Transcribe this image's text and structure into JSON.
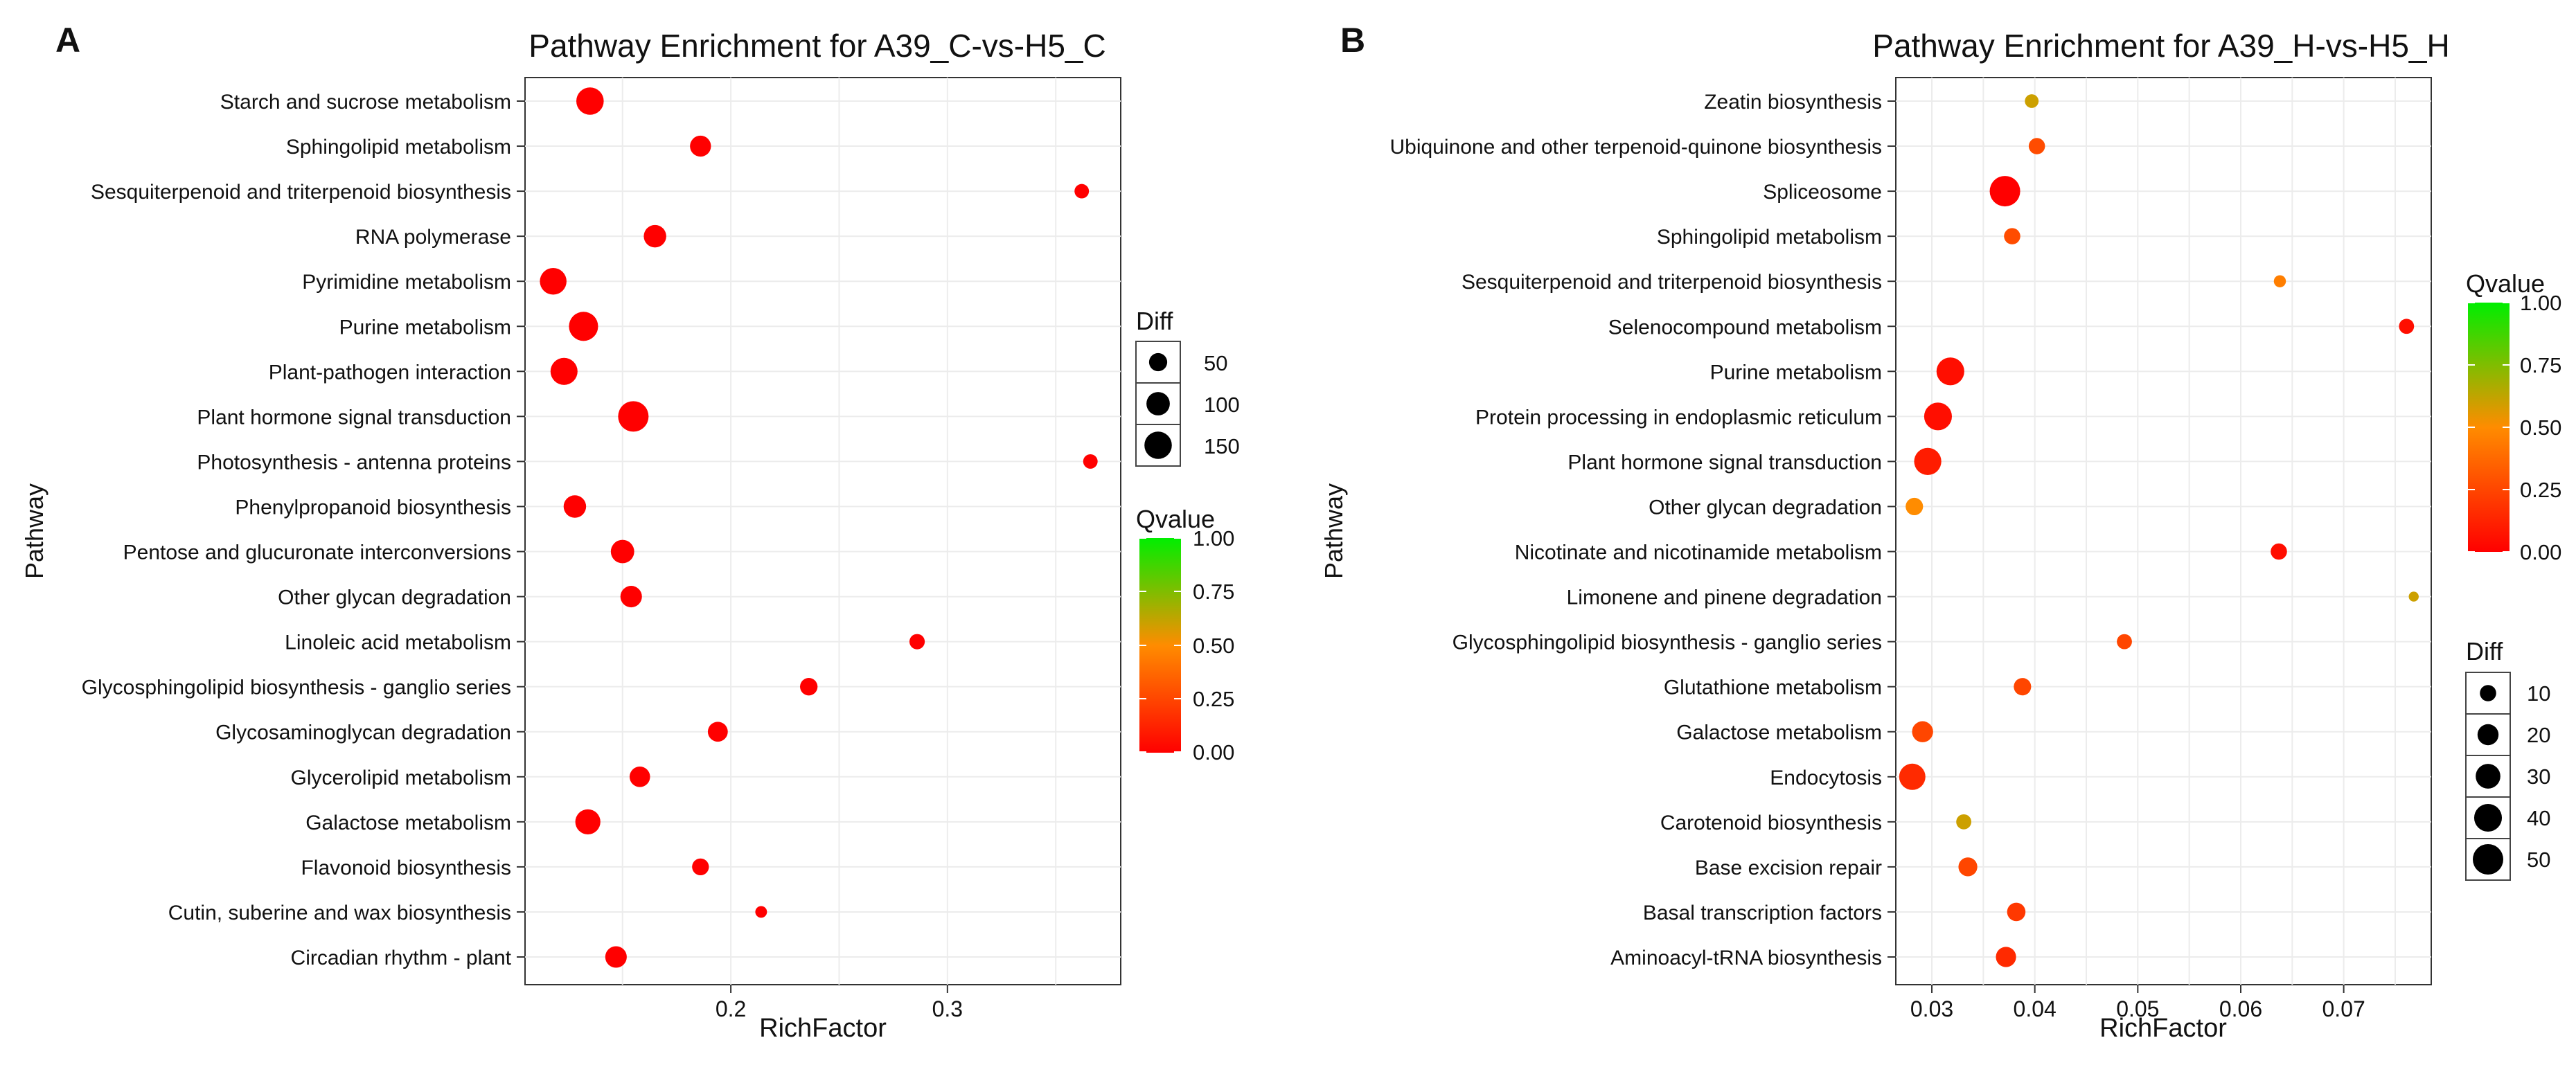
{
  "chart_data": [
    {
      "type": "scatter",
      "panel_label": "A",
      "title": "Pathway Enrichment for A39_C-vs-H5_C",
      "xlabel": "RichFactor",
      "ylabel": "Pathway",
      "xlim": [
        0.105,
        0.38
      ],
      "xticks": [
        0.2,
        0.3
      ],
      "xtick_labels": [
        "0.2",
        "0.3"
      ],
      "points": [
        {
          "pathway": "Starch and sucrose metabolism",
          "rich": 0.135,
          "diff": 150,
          "q": 0.0
        },
        {
          "pathway": "Sphingolipid metabolism",
          "rich": 0.186,
          "diff": 75,
          "q": 0.0
        },
        {
          "pathway": "Sesquiterpenoid and triterpenoid biosynthesis",
          "rich": 0.362,
          "diff": 25,
          "q": 0.0
        },
        {
          "pathway": "RNA polymerase",
          "rich": 0.165,
          "diff": 90,
          "q": 0.0
        },
        {
          "pathway": "Pyrimidine metabolism",
          "rich": 0.118,
          "diff": 140,
          "q": 0.0
        },
        {
          "pathway": "Purine metabolism",
          "rich": 0.132,
          "diff": 175,
          "q": 0.0
        },
        {
          "pathway": "Plant-pathogen interaction",
          "rich": 0.123,
          "diff": 145,
          "q": 0.0
        },
        {
          "pathway": "Plant hormone signal transduction",
          "rich": 0.155,
          "diff": 195,
          "q": 0.0
        },
        {
          "pathway": "Photosynthesis - antenna proteins",
          "rich": 0.366,
          "diff": 25,
          "q": 0.0
        },
        {
          "pathway": "Phenylpropanoid biosynthesis",
          "rich": 0.128,
          "diff": 90,
          "q": 0.0
        },
        {
          "pathway": "Pentose and glucuronate interconversions",
          "rich": 0.15,
          "diff": 100,
          "q": 0.0
        },
        {
          "pathway": "Other glycan degradation",
          "rich": 0.154,
          "diff": 80,
          "q": 0.0
        },
        {
          "pathway": "Linoleic acid metabolism",
          "rich": 0.286,
          "diff": 30,
          "q": 0.0
        },
        {
          "pathway": "Glycosphingolipid biosynthesis - ganglio series",
          "rich": 0.236,
          "diff": 45,
          "q": 0.0
        },
        {
          "pathway": "Glycosaminoglycan degradation",
          "rich": 0.194,
          "diff": 65,
          "q": 0.0
        },
        {
          "pathway": "Glycerolipid metabolism",
          "rich": 0.158,
          "diff": 70,
          "q": 0.0
        },
        {
          "pathway": "Galactose metabolism",
          "rich": 0.134,
          "diff": 120,
          "q": 0.0
        },
        {
          "pathway": "Flavonoid biosynthesis",
          "rich": 0.186,
          "diff": 40,
          "q": 0.0
        },
        {
          "pathway": "Cutin, suberine and wax biosynthesis",
          "rich": 0.214,
          "diff": 12,
          "q": 0.0
        },
        {
          "pathway": "Circadian rhythm - plant",
          "rich": 0.147,
          "diff": 80,
          "q": 0.0
        }
      ],
      "size_legend": {
        "title": "Diff",
        "values": [
          50,
          100,
          150
        ],
        "labels": [
          "50",
          "100",
          "150"
        ]
      },
      "color_legend": {
        "title": "Qvalue",
        "ticks": [
          1.0,
          0.75,
          0.5,
          0.25,
          0.0
        ],
        "labels": [
          "1.00",
          "0.75",
          "0.50",
          "0.25",
          "0.00"
        ],
        "low_color": "#ff0000",
        "mid_color": "#ff8c00",
        "high_color": "#00ee00"
      }
    },
    {
      "type": "scatter",
      "panel_label": "B",
      "title": "Pathway Enrichment for A39_H-vs-H5_H",
      "xlabel": "RichFactor",
      "ylabel": "Pathway",
      "xlim": [
        0.0265,
        0.0785
      ],
      "xticks": [
        0.03,
        0.04,
        0.05,
        0.06,
        0.07
      ],
      "xtick_labels": [
        "0.03",
        "0.04",
        "0.05",
        "0.06",
        "0.07"
      ],
      "points": [
        {
          "pathway": "Zeatin biosynthesis",
          "rich": 0.0397,
          "diff": 6,
          "q": 0.6
        },
        {
          "pathway": "Ubiquinone and other terpenoid-quinone biosynthesis",
          "rich": 0.0402,
          "diff": 10,
          "q": 0.27
        },
        {
          "pathway": "Spliceosome",
          "rich": 0.0371,
          "diff": 50,
          "q": 0.0
        },
        {
          "pathway": "Sphingolipid metabolism",
          "rich": 0.0378,
          "diff": 10,
          "q": 0.27
        },
        {
          "pathway": "Sesquiterpenoid and triterpenoid biosynthesis",
          "rich": 0.0638,
          "diff": 4,
          "q": 0.45
        },
        {
          "pathway": "Selenocompound metabolism",
          "rich": 0.0761,
          "diff": 8,
          "q": 0.05
        },
        {
          "pathway": "Purine metabolism",
          "rich": 0.0318,
          "diff": 40,
          "q": 0.05
        },
        {
          "pathway": "Protein processing in endoplasmic reticulum",
          "rich": 0.0306,
          "diff": 40,
          "q": 0.05
        },
        {
          "pathway": "Plant hormone signal transduction",
          "rich": 0.0296,
          "diff": 38,
          "q": 0.1
        },
        {
          "pathway": "Other glycan degradation",
          "rich": 0.0283,
          "diff": 12,
          "q": 0.5
        },
        {
          "pathway": "Nicotinate and nicotinamide metabolism",
          "rich": 0.0637,
          "diff": 10,
          "q": 0.05
        },
        {
          "pathway": "Limonene and pinene degradation",
          "rich": 0.0768,
          "diff": 2,
          "q": 0.6
        },
        {
          "pathway": "Glycosphingolipid biosynthesis - ganglio series",
          "rich": 0.0487,
          "diff": 8,
          "q": 0.25
        },
        {
          "pathway": "Glutathione metabolism",
          "rich": 0.0388,
          "diff": 12,
          "q": 0.25
        },
        {
          "pathway": "Galactose metabolism",
          "rich": 0.0291,
          "diff": 20,
          "q": 0.25
        },
        {
          "pathway": "Endocytosis",
          "rich": 0.0281,
          "diff": 35,
          "q": 0.15
        },
        {
          "pathway": "Carotenoid biosynthesis",
          "rich": 0.0331,
          "diff": 8,
          "q": 0.6
        },
        {
          "pathway": "Base excision repair",
          "rich": 0.0335,
          "diff": 15,
          "q": 0.25
        },
        {
          "pathway": "Basal transcription factors",
          "rich": 0.0382,
          "diff": 14,
          "q": 0.2
        },
        {
          "pathway": "Aminoacyl-tRNA biosynthesis",
          "rich": 0.0372,
          "diff": 18,
          "q": 0.15
        }
      ],
      "size_legend": {
        "title": "Diff",
        "values": [
          10,
          20,
          30,
          40,
          50
        ],
        "labels": [
          "10",
          "20",
          "30",
          "40",
          "50"
        ]
      },
      "color_legend": {
        "title": "Qvalue",
        "ticks": [
          1.0,
          0.75,
          0.5,
          0.25,
          0.0
        ],
        "labels": [
          "1.00",
          "0.75",
          "0.50",
          "0.25",
          "0.00"
        ],
        "low_color": "#ff0000",
        "mid_color": "#ff8c00",
        "high_color": "#00ee00"
      }
    }
  ]
}
